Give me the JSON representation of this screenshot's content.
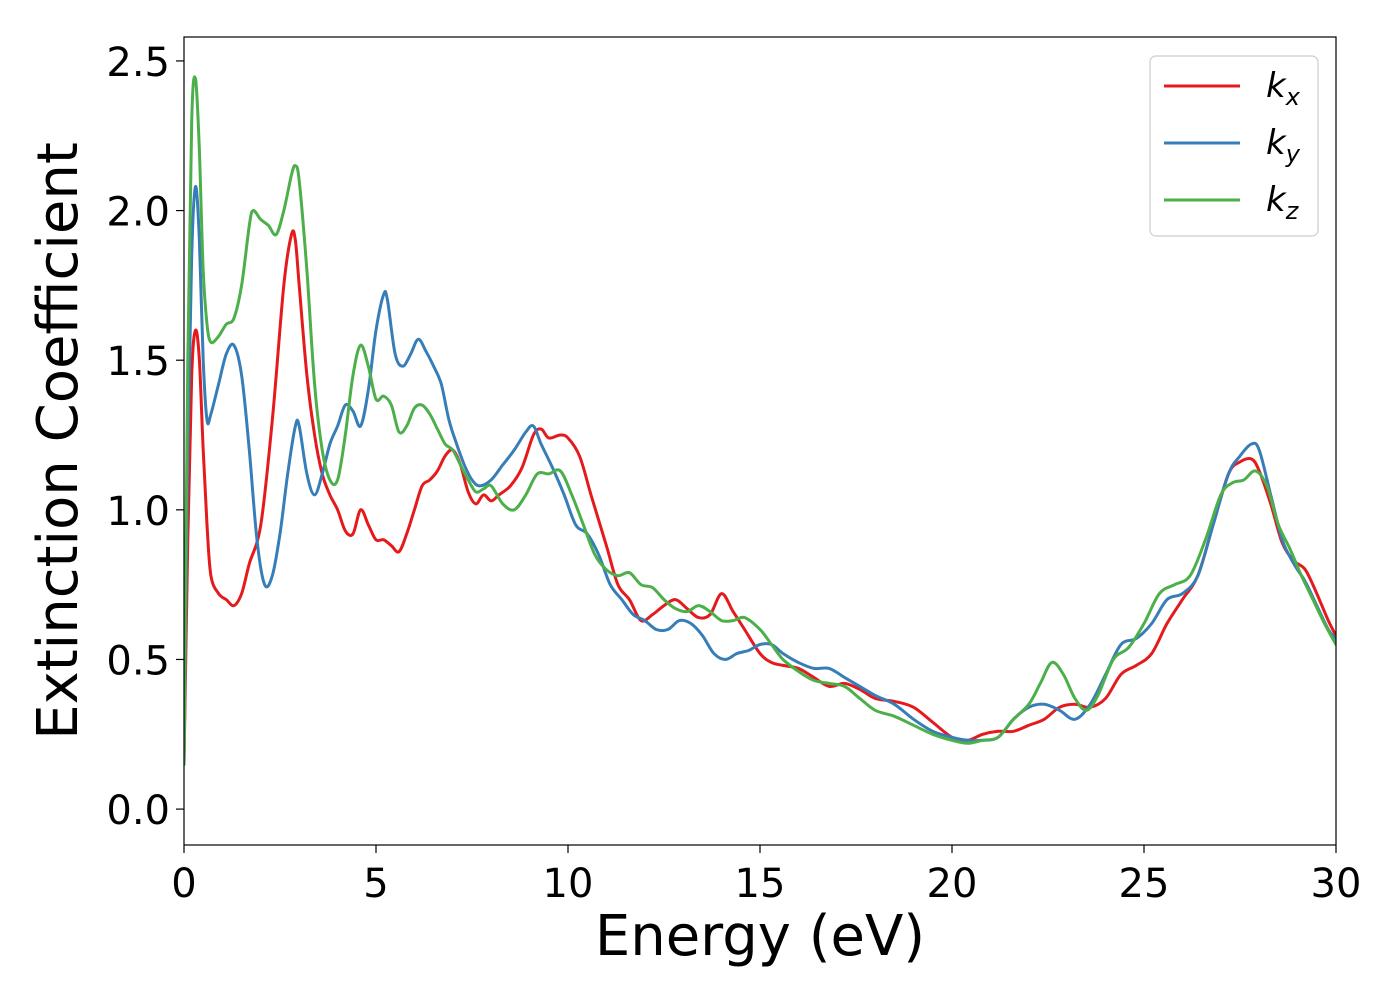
{
  "chart_data": {
    "type": "line",
    "title": "",
    "xlabel": "Energy (eV)",
    "ylabel": "Extinction Coefficient",
    "xlim": [
      0,
      30
    ],
    "ylim": [
      -0.12,
      2.58
    ],
    "xticks": [
      0,
      5,
      10,
      15,
      20,
      25,
      30
    ],
    "xtick_labels": [
      "0",
      "5",
      "10",
      "15",
      "20",
      "25",
      "30"
    ],
    "yticks": [
      0.0,
      0.5,
      1.0,
      1.5,
      2.0,
      2.5
    ],
    "ytick_labels": [
      "0.0",
      "0.5",
      "1.0",
      "1.5",
      "2.0",
      "2.5"
    ],
    "grid": false,
    "legend_position": "top-right",
    "series": [
      {
        "name": "k_x",
        "legend_main": "k",
        "legend_sub": "x",
        "color": "#e41a1c",
        "x": [
          0,
          0.1,
          0.2,
          0.3,
          0.4,
          0.5,
          0.6,
          0.7,
          0.9,
          1.1,
          1.3,
          1.5,
          1.7,
          2.0,
          2.3,
          2.6,
          2.8,
          2.9,
          3.0,
          3.2,
          3.4,
          3.6,
          3.8,
          4.0,
          4.2,
          4.4,
          4.6,
          4.8,
          5.0,
          5.2,
          5.4,
          5.6,
          5.8,
          6.0,
          6.2,
          6.4,
          6.6,
          6.8,
          7.0,
          7.2,
          7.4,
          7.6,
          7.8,
          8.0,
          8.2,
          8.5,
          8.8,
          9.1,
          9.3,
          9.5,
          9.8,
          10.0,
          10.3,
          10.6,
          11.0,
          11.3,
          11.6,
          11.9,
          12.2,
          12.5,
          12.8,
          13.1,
          13.4,
          13.7,
          14.0,
          14.3,
          14.6,
          15.0,
          15.3,
          15.6,
          16.0,
          16.4,
          16.8,
          17.2,
          17.6,
          18.0,
          18.5,
          19.0,
          19.5,
          20.0,
          20.4,
          20.8,
          21.2,
          21.6,
          22.0,
          22.4,
          22.8,
          23.2,
          23.6,
          24.0,
          24.4,
          24.8,
          25.2,
          25.6,
          26.0,
          26.4,
          26.8,
          27.2,
          27.5,
          27.8,
          28.0,
          28.3,
          28.6,
          28.9,
          29.2,
          29.5,
          29.8,
          30.0
        ],
        "y": [
          0.15,
          0.9,
          1.45,
          1.6,
          1.5,
          1.2,
          0.95,
          0.78,
          0.72,
          0.7,
          0.68,
          0.72,
          0.82,
          0.95,
          1.3,
          1.75,
          1.92,
          1.9,
          1.75,
          1.45,
          1.25,
          1.12,
          1.05,
          1.0,
          0.93,
          0.92,
          1.0,
          0.95,
          0.9,
          0.9,
          0.88,
          0.86,
          0.92,
          1.0,
          1.08,
          1.1,
          1.13,
          1.18,
          1.2,
          1.15,
          1.06,
          1.02,
          1.05,
          1.03,
          1.05,
          1.08,
          1.14,
          1.25,
          1.27,
          1.24,
          1.25,
          1.24,
          1.18,
          1.05,
          0.88,
          0.75,
          0.7,
          0.63,
          0.65,
          0.68,
          0.7,
          0.67,
          0.64,
          0.65,
          0.72,
          0.66,
          0.6,
          0.52,
          0.49,
          0.48,
          0.47,
          0.44,
          0.41,
          0.42,
          0.4,
          0.37,
          0.36,
          0.34,
          0.29,
          0.24,
          0.23,
          0.25,
          0.26,
          0.26,
          0.28,
          0.3,
          0.34,
          0.35,
          0.34,
          0.37,
          0.45,
          0.48,
          0.52,
          0.62,
          0.7,
          0.78,
          0.95,
          1.12,
          1.16,
          1.17,
          1.13,
          1.02,
          0.89,
          0.83,
          0.8,
          0.72,
          0.63,
          0.58
        ]
      },
      {
        "name": "k_y",
        "legend_main": "k",
        "legend_sub": "y",
        "color": "#377eb8",
        "x": [
          0,
          0.1,
          0.2,
          0.3,
          0.4,
          0.5,
          0.6,
          0.7,
          0.9,
          1.1,
          1.3,
          1.5,
          1.7,
          1.9,
          2.1,
          2.3,
          2.5,
          2.7,
          2.9,
          3.0,
          3.2,
          3.4,
          3.6,
          3.8,
          4.0,
          4.2,
          4.4,
          4.6,
          4.8,
          5.0,
          5.2,
          5.3,
          5.5,
          5.7,
          5.9,
          6.1,
          6.3,
          6.5,
          6.7,
          6.9,
          7.1,
          7.3,
          7.5,
          7.7,
          8.0,
          8.3,
          8.6,
          8.9,
          9.1,
          9.3,
          9.6,
          9.9,
          10.2,
          10.5,
          10.8,
          11.1,
          11.4,
          11.7,
          12.0,
          12.3,
          12.6,
          12.9,
          13.2,
          13.5,
          13.8,
          14.1,
          14.4,
          14.7,
          15.0,
          15.3,
          15.6,
          16.0,
          16.4,
          16.8,
          17.2,
          17.6,
          18.0,
          18.5,
          19.0,
          19.5,
          20.0,
          20.4,
          20.8,
          21.2,
          21.6,
          22.0,
          22.4,
          22.8,
          23.2,
          23.6,
          24.0,
          24.4,
          24.8,
          25.2,
          25.6,
          26.0,
          26.4,
          26.8,
          27.2,
          27.5,
          27.8,
          28.0,
          28.3,
          28.6,
          28.9,
          29.2,
          29.5,
          29.8,
          30.0
        ],
        "y": [
          0.15,
          1.2,
          1.85,
          2.08,
          1.9,
          1.5,
          1.3,
          1.32,
          1.42,
          1.52,
          1.55,
          1.45,
          1.2,
          0.9,
          0.75,
          0.78,
          0.92,
          1.12,
          1.28,
          1.28,
          1.12,
          1.05,
          1.12,
          1.22,
          1.28,
          1.35,
          1.33,
          1.28,
          1.4,
          1.6,
          1.72,
          1.7,
          1.52,
          1.48,
          1.52,
          1.57,
          1.53,
          1.48,
          1.42,
          1.3,
          1.22,
          1.15,
          1.1,
          1.08,
          1.1,
          1.15,
          1.2,
          1.26,
          1.28,
          1.22,
          1.14,
          1.05,
          0.95,
          0.92,
          0.85,
          0.75,
          0.7,
          0.65,
          0.63,
          0.6,
          0.6,
          0.63,
          0.62,
          0.58,
          0.52,
          0.5,
          0.52,
          0.53,
          0.55,
          0.55,
          0.52,
          0.49,
          0.47,
          0.47,
          0.44,
          0.41,
          0.38,
          0.35,
          0.3,
          0.26,
          0.24,
          0.23,
          0.23,
          0.24,
          0.3,
          0.34,
          0.35,
          0.33,
          0.3,
          0.35,
          0.45,
          0.55,
          0.57,
          0.62,
          0.7,
          0.72,
          0.78,
          0.95,
          1.12,
          1.18,
          1.22,
          1.2,
          1.05,
          0.9,
          0.82,
          0.76,
          0.68,
          0.6,
          0.57
        ]
      },
      {
        "name": "k_z",
        "legend_main": "k",
        "legend_sub": "z",
        "color": "#4daf4a",
        "x": [
          0,
          0.1,
          0.2,
          0.3,
          0.4,
          0.5,
          0.6,
          0.7,
          0.9,
          1.1,
          1.3,
          1.5,
          1.7,
          1.8,
          2.0,
          2.2,
          2.4,
          2.6,
          2.8,
          2.9,
          3.0,
          3.2,
          3.4,
          3.6,
          3.8,
          4.0,
          4.2,
          4.4,
          4.6,
          4.8,
          5.0,
          5.2,
          5.4,
          5.6,
          5.8,
          6.0,
          6.2,
          6.4,
          6.6,
          6.8,
          7.0,
          7.2,
          7.4,
          7.6,
          7.8,
          8.0,
          8.3,
          8.6,
          8.9,
          9.2,
          9.5,
          9.8,
          10.1,
          10.4,
          10.7,
          11.0,
          11.3,
          11.6,
          11.9,
          12.2,
          12.5,
          12.8,
          13.1,
          13.4,
          13.7,
          14.0,
          14.3,
          14.6,
          15.0,
          15.3,
          15.6,
          16.0,
          16.4,
          16.8,
          17.2,
          17.6,
          18.0,
          18.5,
          19.0,
          19.5,
          20.0,
          20.4,
          20.8,
          21.2,
          21.6,
          22.0,
          22.3,
          22.6,
          22.9,
          23.2,
          23.5,
          23.8,
          24.2,
          24.6,
          25.0,
          25.4,
          25.8,
          26.2,
          26.6,
          27.0,
          27.3,
          27.6,
          27.9,
          28.2,
          28.5,
          28.8,
          29.1,
          29.4,
          29.7,
          30.0
        ],
        "y": [
          0.15,
          1.5,
          2.3,
          2.44,
          2.2,
          1.8,
          1.62,
          1.56,
          1.58,
          1.62,
          1.64,
          1.75,
          1.95,
          2.0,
          1.97,
          1.95,
          1.92,
          2.0,
          2.12,
          2.15,
          2.1,
          1.8,
          1.42,
          1.2,
          1.1,
          1.1,
          1.25,
          1.45,
          1.55,
          1.48,
          1.37,
          1.38,
          1.35,
          1.26,
          1.28,
          1.34,
          1.35,
          1.32,
          1.27,
          1.22,
          1.2,
          1.15,
          1.1,
          1.06,
          1.07,
          1.08,
          1.02,
          1.0,
          1.05,
          1.12,
          1.12,
          1.13,
          1.05,
          0.95,
          0.85,
          0.8,
          0.78,
          0.79,
          0.75,
          0.74,
          0.7,
          0.67,
          0.66,
          0.68,
          0.66,
          0.63,
          0.63,
          0.64,
          0.6,
          0.55,
          0.5,
          0.46,
          0.43,
          0.42,
          0.41,
          0.37,
          0.33,
          0.31,
          0.28,
          0.25,
          0.23,
          0.22,
          0.23,
          0.24,
          0.3,
          0.35,
          0.42,
          0.49,
          0.45,
          0.37,
          0.33,
          0.38,
          0.5,
          0.54,
          0.62,
          0.72,
          0.75,
          0.78,
          0.9,
          1.05,
          1.09,
          1.1,
          1.13,
          1.08,
          0.95,
          0.87,
          0.78,
          0.7,
          0.62,
          0.55
        ]
      }
    ]
  }
}
